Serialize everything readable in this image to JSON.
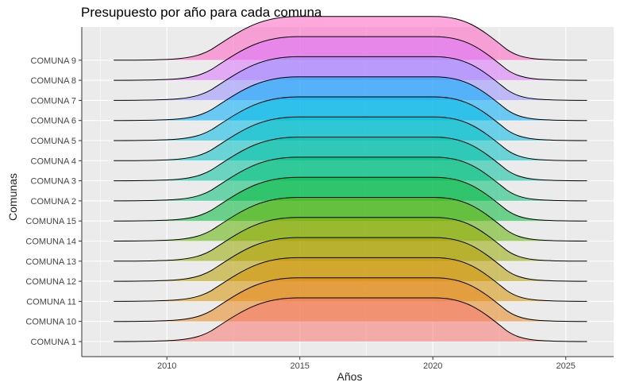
{
  "chart_data": {
    "type": "ridgeline",
    "title": "Presupuesto por año para cada comuna",
    "xlabel": "Años",
    "ylabel": "Comunas",
    "xlim": [
      2006.8,
      2026.8
    ],
    "x_ticks": [
      2010,
      2015,
      2020,
      2025
    ],
    "grid": true,
    "series": [
      {
        "name": "COMUNA 1",
        "range": [
          2008,
          2025.8
        ],
        "peak": [
          2014.7,
          2020.3
        ],
        "color": "#F8766D"
      },
      {
        "name": "COMUNA 10",
        "range": [
          2008,
          2025.8
        ],
        "peak": [
          2014.7,
          2020.3
        ],
        "color": "#E7861B"
      },
      {
        "name": "COMUNA 11",
        "range": [
          2008,
          2025.8
        ],
        "peak": [
          2014.7,
          2020.3
        ],
        "color": "#D39200"
      },
      {
        "name": "COMUNA 12",
        "range": [
          2008,
          2025.8
        ],
        "peak": [
          2014.7,
          2020.3
        ],
        "color": "#B79F00"
      },
      {
        "name": "COMUNA 13",
        "range": [
          2008,
          2025.8
        ],
        "peak": [
          2014.7,
          2020.3
        ],
        "color": "#93AA00"
      },
      {
        "name": "COMUNA 14",
        "range": [
          2008,
          2025.8
        ],
        "peak": [
          2014.7,
          2020.3
        ],
        "color": "#5EB300"
      },
      {
        "name": "COMUNA 15",
        "range": [
          2008,
          2025.8
        ],
        "peak": [
          2014.7,
          2020.3
        ],
        "color": "#00BA38"
      },
      {
        "name": "COMUNA 2",
        "range": [
          2008,
          2025.8
        ],
        "peak": [
          2014.7,
          2020.3
        ],
        "color": "#00BF74"
      },
      {
        "name": "COMUNA 3",
        "range": [
          2008,
          2025.8
        ],
        "peak": [
          2014.7,
          2020.3
        ],
        "color": "#00C19F"
      },
      {
        "name": "COMUNA 4",
        "range": [
          2008,
          2025.8
        ],
        "peak": [
          2014.7,
          2020.3
        ],
        "color": "#00BFC4"
      },
      {
        "name": "COMUNA 5",
        "range": [
          2008,
          2025.8
        ],
        "peak": [
          2014.7,
          2020.3
        ],
        "color": "#00B9E3"
      },
      {
        "name": "COMUNA 6",
        "range": [
          2008,
          2025.8
        ],
        "peak": [
          2014.7,
          2020.3
        ],
        "color": "#00ADFA"
      },
      {
        "name": "COMUNA 7",
        "range": [
          2008,
          2025.8
        ],
        "peak": [
          2014.7,
          2020.3
        ],
        "color": "#9590FF"
      },
      {
        "name": "COMUNA 8",
        "range": [
          2008,
          2025.8
        ],
        "peak": [
          2014.7,
          2020.3
        ],
        "color": "#DB72FB"
      },
      {
        "name": "COMUNA 9",
        "range": [
          2008,
          2025.8
        ],
        "peak": [
          2014.7,
          2020.3
        ],
        "color": "#FF61C3"
      }
    ],
    "panel_color": "#EBEBEB",
    "grid_color": "#FFFFFF"
  }
}
